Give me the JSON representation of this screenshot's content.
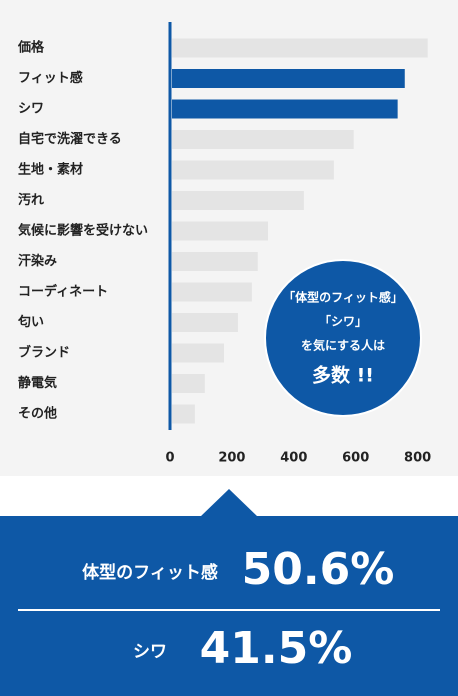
{
  "chart_data": {
    "type": "bar",
    "orientation": "horizontal",
    "categories": [
      "価格",
      "フィット感",
      "シワ",
      "自宅で洗濯できる",
      "生地・素材",
      "汚れ",
      "気候に影響を受けない",
      "汗染み",
      "コーディネート",
      "匂い",
      "ブランド",
      "静電気",
      "その他"
    ],
    "values": [
      826,
      752,
      729,
      587,
      523,
      426,
      310,
      277,
      258,
      213,
      168,
      106,
      74
    ],
    "colors": [
      "#e4e4e4",
      "#0e58a6",
      "#0e58a6",
      "#e4e4e4",
      "#e4e4e4",
      "#e4e4e4",
      "#e4e4e4",
      "#e4e4e4",
      "#e4e4e4",
      "#e4e4e4",
      "#e4e4e4",
      "#e4e4e4",
      "#e4e4e4"
    ],
    "xlim": [
      0,
      840
    ],
    "xticks": [
      0,
      200,
      400,
      600,
      800
    ],
    "annotation": [
      "「体型のフィット感」",
      "「シワ」",
      "を気にする人は",
      "多数 !!"
    ]
  },
  "summary": [
    {
      "label": "体型のフィット感",
      "value": "50.6%"
    },
    {
      "label": "シワ",
      "value": "41.5%"
    }
  ]
}
